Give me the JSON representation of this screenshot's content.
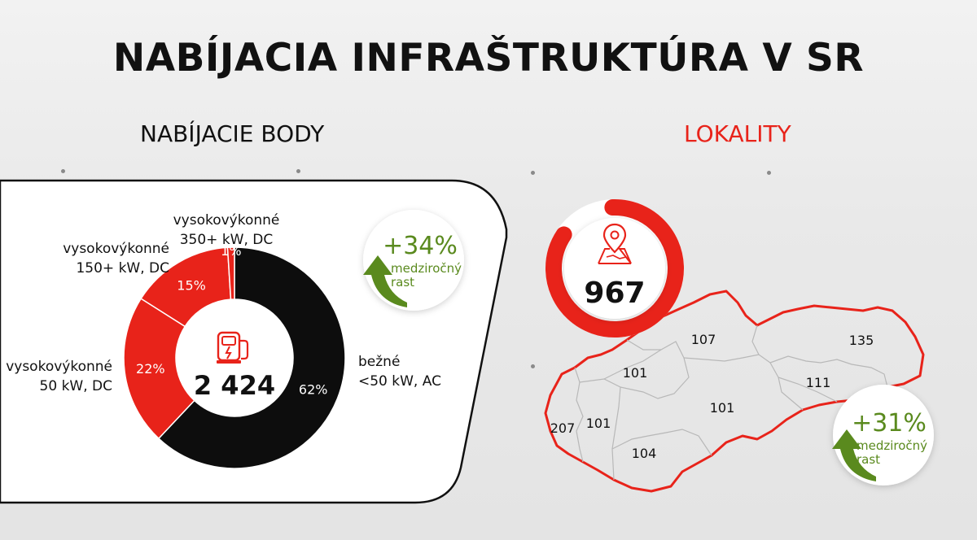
{
  "title": "NABÍJACIA INFRAŠTRUKTÚRA V SR",
  "left_heading": "NABÍJACIE BODY",
  "right_heading": "LOKALITY",
  "colors": {
    "red": "#e8231a",
    "black": "#0d0d0d",
    "green": "#5a8a1e"
  },
  "chart_data": [
    {
      "type": "pie",
      "categories": [
        "bežné <50 kW, AC",
        "vysokovýkonné 50 kW, DC",
        "vysokovýkonné 150+ kW, DC",
        "vysokovýkonné 350+ kW, DC"
      ],
      "values": [
        62,
        22,
        15,
        1
      ],
      "slice_labels": [
        "62%",
        "22%",
        "15%",
        "1%"
      ],
      "center_value": "2 424",
      "center_icon": "charging-station-icon"
    },
    {
      "type": "table",
      "title": "",
      "total": "967",
      "total_icon": "map-pin-icon",
      "regions": [
        {
          "value": "207"
        },
        {
          "value": "101"
        },
        {
          "value": "104"
        },
        {
          "value": "101"
        },
        {
          "value": "101"
        },
        {
          "value": "107"
        },
        {
          "value": "111"
        },
        {
          "value": "135"
        }
      ]
    }
  ],
  "donut_legend": {
    "bezne": [
      "bežné",
      "<50 kW, AC"
    ],
    "dc50": [
      "vysokovýkonné",
      "50 kW, DC"
    ],
    "dc150": [
      "vysokovýkonné",
      "150+ kW, DC"
    ],
    "dc350": [
      "vysokovýkonné",
      "350+ kW, DC"
    ]
  },
  "growth_left": {
    "value": "+34%",
    "line1": "medziročný",
    "line2": "rast"
  },
  "growth_right": {
    "value": "+31%",
    "line1": "medziročný",
    "line2": "rast"
  }
}
